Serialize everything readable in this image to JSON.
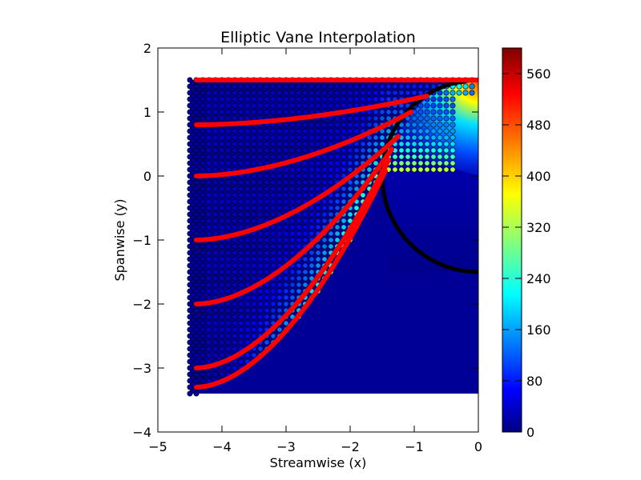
{
  "chart_data": {
    "type": "scatter",
    "title": "Elliptic Vane Interpolation",
    "xlabel": "Streamwise (x)",
    "ylabel": "Spanwise (y)",
    "xlim": [
      -5,
      0
    ],
    "ylim": [
      -4,
      2
    ],
    "xticks": [
      "−5",
      "−4",
      "−3",
      "−2",
      "−1",
      "0"
    ],
    "yticks": [
      "−4",
      "−3",
      "−2",
      "−1",
      "0",
      "1",
      "2"
    ],
    "grid": false,
    "colorbar": {
      "colormap": "jet",
      "range": [
        0,
        600
      ],
      "ticks": [
        "0",
        "80",
        "160",
        "240",
        "320",
        "400",
        "480",
        "560"
      ]
    },
    "domain": {
      "x": [
        -4.5,
        0
      ],
      "y": [
        -3.4,
        1.5
      ]
    },
    "circle": {
      "center": [
        0,
        0
      ],
      "radius": 1.5,
      "arc_deg": [
        90,
        270
      ],
      "color": "#000000"
    },
    "streamlines": {
      "color": "#ff0000",
      "series": [
        {
          "start_y": 1.5,
          "end": [
            0.0,
            1.5
          ]
        },
        {
          "start_y": 0.8,
          "end": [
            -0.8,
            1.25
          ]
        },
        {
          "start_y": 0.0,
          "end": [
            -1.05,
            1.0
          ]
        },
        {
          "start_y": -1.0,
          "end": [
            -1.25,
            0.62
          ]
        },
        {
          "start_y": -2.0,
          "end": [
            -1.35,
            0.42
          ]
        },
        {
          "start_y": -3.0,
          "end": [
            -1.4,
            0.25
          ]
        },
        {
          "start_y": -3.3,
          "end": [
            -1.45,
            0.08
          ]
        }
      ]
    },
    "scatter_grid": {
      "dx": 0.1,
      "dy": 0.1
    }
  }
}
